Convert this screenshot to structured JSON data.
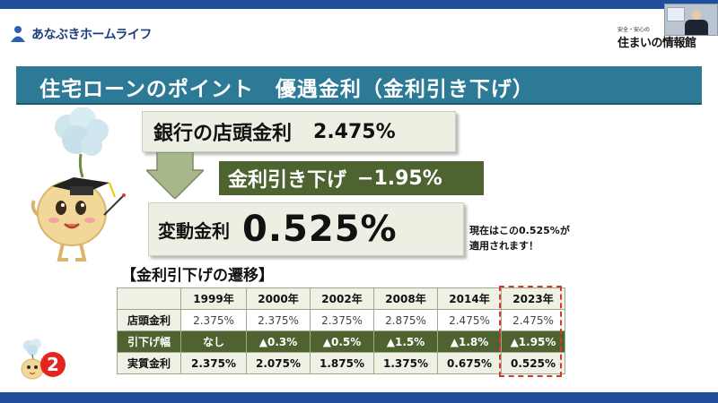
{
  "header": {
    "brand_name": "あなぶきホームライフ",
    "tagline": "安全・安心の",
    "site_title": "住まいの情報館",
    "brand_color": "#1f4e9c"
  },
  "slide": {
    "title": "住宅ローンのポイント　優遇金利（金利引き下げ）",
    "bank_rate": {
      "label": "銀行の店頭金利",
      "value": "2.475%"
    },
    "discount": {
      "label": "金利引き下げ",
      "value": "−1.95%"
    },
    "variable_rate": {
      "label": "変動金利",
      "value": "0.525%"
    },
    "note_line1": "現在はこの0.525%が",
    "note_line2": "適用されます！",
    "history_title": "【金利引下げの遷移】",
    "page_number": "2"
  },
  "table": {
    "years": [
      "1999年",
      "2000年",
      "2002年",
      "2008年",
      "2014年",
      "2023年"
    ],
    "rows": [
      {
        "label": "店頭金利",
        "values": [
          "2.375%",
          "2.375%",
          "2.375%",
          "2.875%",
          "2.475%",
          "2.475%"
        ]
      },
      {
        "label": "引下げ幅",
        "values": [
          "なし",
          "▲0.3%",
          "▲0.5%",
          "▲1.5%",
          "▲1.8%",
          "▲1.95%"
        ]
      },
      {
        "label": "実質金利",
        "values": [
          "2.375%",
          "2.075%",
          "1.875%",
          "1.375%",
          "0.675%",
          "0.525%"
        ]
      }
    ]
  },
  "colors": {
    "title_bar": "#2c7a96",
    "dark_green": "#4e6330",
    "light_green": "#ecf0e2",
    "highlight_red": "#d23a2d"
  }
}
